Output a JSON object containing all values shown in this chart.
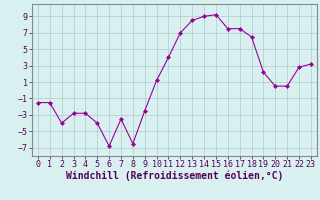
{
  "x": [
    0,
    1,
    2,
    3,
    4,
    5,
    6,
    7,
    8,
    9,
    10,
    11,
    12,
    13,
    14,
    15,
    16,
    17,
    18,
    19,
    20,
    21,
    22,
    23
  ],
  "y": [
    -1.5,
    -1.5,
    -4.0,
    -2.8,
    -2.8,
    -4.0,
    -6.8,
    -3.5,
    -6.5,
    -2.5,
    1.2,
    4.0,
    7.0,
    8.5,
    9.0,
    9.2,
    7.5,
    7.5,
    6.5,
    2.2,
    0.5,
    0.5,
    2.8,
    3.2
  ],
  "line_color": "#990099",
  "marker": "D",
  "marker_size": 2,
  "bg_color": "#d8f0f0",
  "grid_color": "#b0c8c8",
  "xlabel": "Windchill (Refroidissement éolien,°C)",
  "xlabel_fontsize": 7,
  "xlim": [
    -0.5,
    23.5
  ],
  "ylim": [
    -8,
    10.5
  ],
  "yticks": [
    -7,
    -5,
    -3,
    -1,
    1,
    3,
    5,
    7,
    9
  ],
  "xticks": [
    0,
    1,
    2,
    3,
    4,
    5,
    6,
    7,
    8,
    9,
    10,
    11,
    12,
    13,
    14,
    15,
    16,
    17,
    18,
    19,
    20,
    21,
    22,
    23
  ],
  "tick_fontsize": 6
}
